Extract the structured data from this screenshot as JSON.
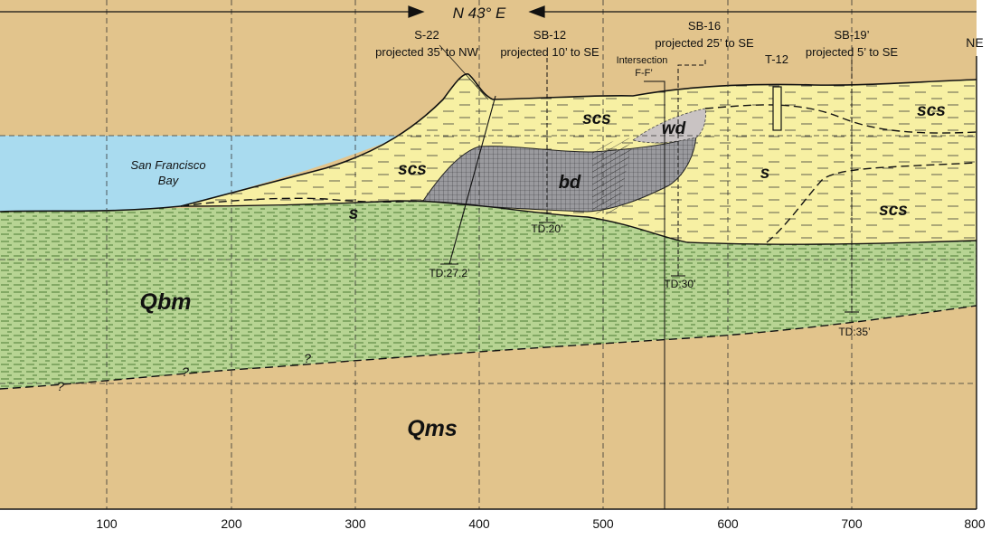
{
  "title": "N 43° E",
  "corner_label": "NE",
  "colors": {
    "bay": "#a9dbef",
    "fill_sand": "#f7f0a3",
    "bay_mud": "#b7d493",
    "bay_mud_lines": "#5a8c3f",
    "qms": "#e2c48c",
    "debris": "#9a9a9e",
    "wood": "#c9c3c3",
    "ink": "#111111"
  },
  "x_axis": {
    "ticks": [
      "100",
      "200",
      "300",
      "400",
      "500",
      "600",
      "700",
      "800"
    ]
  },
  "water_label": "San Francisco Bay",
  "units": {
    "scs_1": "scs",
    "scs_2": "scs",
    "scs_3": "scs",
    "scs_4": "scs",
    "s_1": "s",
    "s_2": "s",
    "bd": "bd",
    "wd": "wd",
    "qbm": "Qbm",
    "qms": "Qms"
  },
  "borings": {
    "s22": {
      "name": "S-22",
      "note": "projected 35’ to NW",
      "td": "TD:27.2’"
    },
    "sb12": {
      "name": "SB-12",
      "note": "projected 10’ to SE",
      "td": "TD:20’"
    },
    "intersection": {
      "name": "Intersection",
      "note": "F-F’"
    },
    "sb16": {
      "name": "SB-16",
      "note": "projected 25’ to SE",
      "td": "TD:30’"
    },
    "t12": {
      "name": "T-12"
    },
    "sb19": {
      "name": "SB-19’",
      "note": "projected 5’ to SE",
      "td": "TD:35’"
    }
  },
  "uncertain_mark": "?"
}
